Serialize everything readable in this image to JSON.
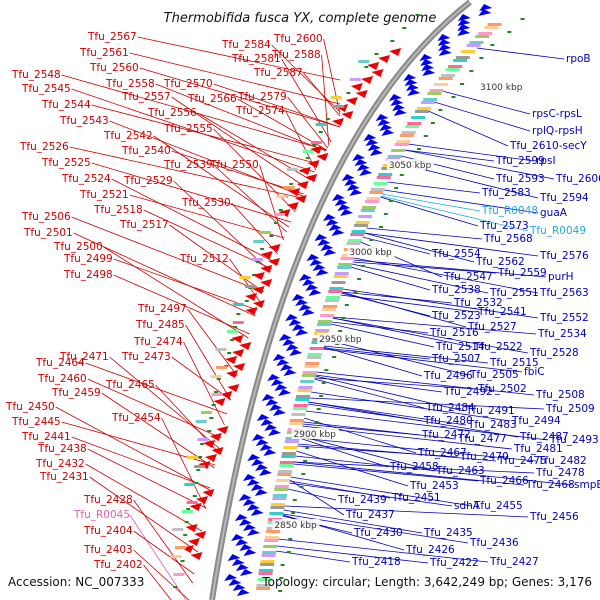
{
  "title": "Thermobifida fusca YX, complete genome",
  "accession": "Accession: NC_007333",
  "summary": "Topology: circular; Length: 3,642,249 bp; Genes: 3,176",
  "scale_marks": [
    "3100 kbp",
    "3050 kbp",
    "3000 kbp",
    "2950 kbp",
    "2900 kbp",
    "2850 kbp"
  ],
  "colors": {
    "forward": "#ee0000",
    "reverse": "#0000ee",
    "label_left": "#cc0000",
    "label_right": "#0000bb",
    "rna_pink": "#e060b0",
    "rna_cyan": "#22aadd"
  },
  "left_labels": [
    "Tfu_2567",
    "Tfu_2561",
    "Tfu_2560",
    "Tfu_2558",
    "Tfu_2548",
    "Tfu_2545",
    "Tfu_2557",
    "Tfu_2570",
    "Tfu_2566",
    "Tfu_2544",
    "Tfu_2556",
    "Tfu_2543",
    "Tfu_2555",
    "Tfu_2542",
    "Tfu_2540",
    "Tfu_2526",
    "Tfu_2525",
    "Tfu_2539",
    "Tfu_2550",
    "Tfu_2524",
    "Tfu_2529",
    "Tfu_2521",
    "Tfu_2530",
    "Tfu_2518",
    "Tfu_2517",
    "Tfu_2506",
    "Tfu_2501",
    "Tfu_2500",
    "Tfu_2512",
    "Tfu_2499",
    "Tfu_2498",
    "Tfu_2497",
    "Tfu_2485",
    "Tfu_2474",
    "Tfu_2471",
    "Tfu_2473",
    "Tfu_2464",
    "Tfu_2460",
    "Tfu_2465",
    "Tfu_2459",
    "Tfu_2450",
    "Tfu_2454",
    "Tfu_2445",
    "Tfu_2441",
    "Tfu_2438",
    "Tfu_2432",
    "Tfu_2431",
    "Tfu_2428",
    "Tfu_R0045",
    "Tfu_2404",
    "Tfu_2403",
    "Tfu_2402",
    "Tfu_2584",
    "Tfu_2600",
    "Tfu_2581",
    "Tfu_2588",
    "Tfu_2587",
    "Tfu_2579",
    "Tfu_2574"
  ],
  "right_labels": [
    "rpoB",
    "3100 kbp",
    "rpsC-rpsL",
    "rplQ-rpsH",
    "Tfu_2610-secY",
    "Tfu_2599",
    "rpsI",
    "Tfu_2593",
    "Tfu_2606",
    "Tfu_2594",
    "Tfu_2583",
    "Tfu_R0048",
    "guaA",
    "Tfu_2573",
    "Tfu_R0049",
    "Tfu_2568",
    "Tfu_2554",
    "Tfu_2576",
    "Tfu_2562",
    "Tfu_2547",
    "Tfu_2559",
    "purH",
    "Tfu_2538",
    "Tfu_2551",
    "Tfu_2563",
    "Tfu_2532",
    "Tfu_2541",
    "Tfu_2523",
    "Tfu_2552",
    "Tfu_2527",
    "Tfu_2516",
    "Tfu_2534",
    "Tfu_2514",
    "Tfu_2522",
    "Tfu_2528",
    "Tfu_2507",
    "Tfu_2515",
    "fbiC",
    "Tfu_2496",
    "Tfu_2505",
    "Tfu_2502",
    "Tfu_2492",
    "Tfu_2508",
    "Tfu_2484",
    "Tfu_2491",
    "Tfu_2509",
    "Tfu_2480",
    "Tfu_2483",
    "Tfu_2494",
    "Tfu_2487",
    "Tfu_2472",
    "Tfu_2477",
    "Tfu_2481",
    "Tfu_2493",
    "Tfu_2467",
    "Tfu_2470",
    "Tfu_2475",
    "Tfu_2482",
    "Tfu_2458",
    "Tfu_2463",
    "Tfu_2478",
    "Tfu_2466",
    "Tfu_2468",
    "smpB",
    "Tfu_2453",
    "Tfu_2439",
    "Tfu_2451",
    "sdhA",
    "Tfu_2455",
    "Tfu_2437",
    "Tfu_2456",
    "Tfu_2430",
    "Tfu_2435",
    "Tfu_2436",
    "Tfu_2426",
    "Tfu_2418",
    "Tfu_2422",
    "Tfu_2427"
  ]
}
